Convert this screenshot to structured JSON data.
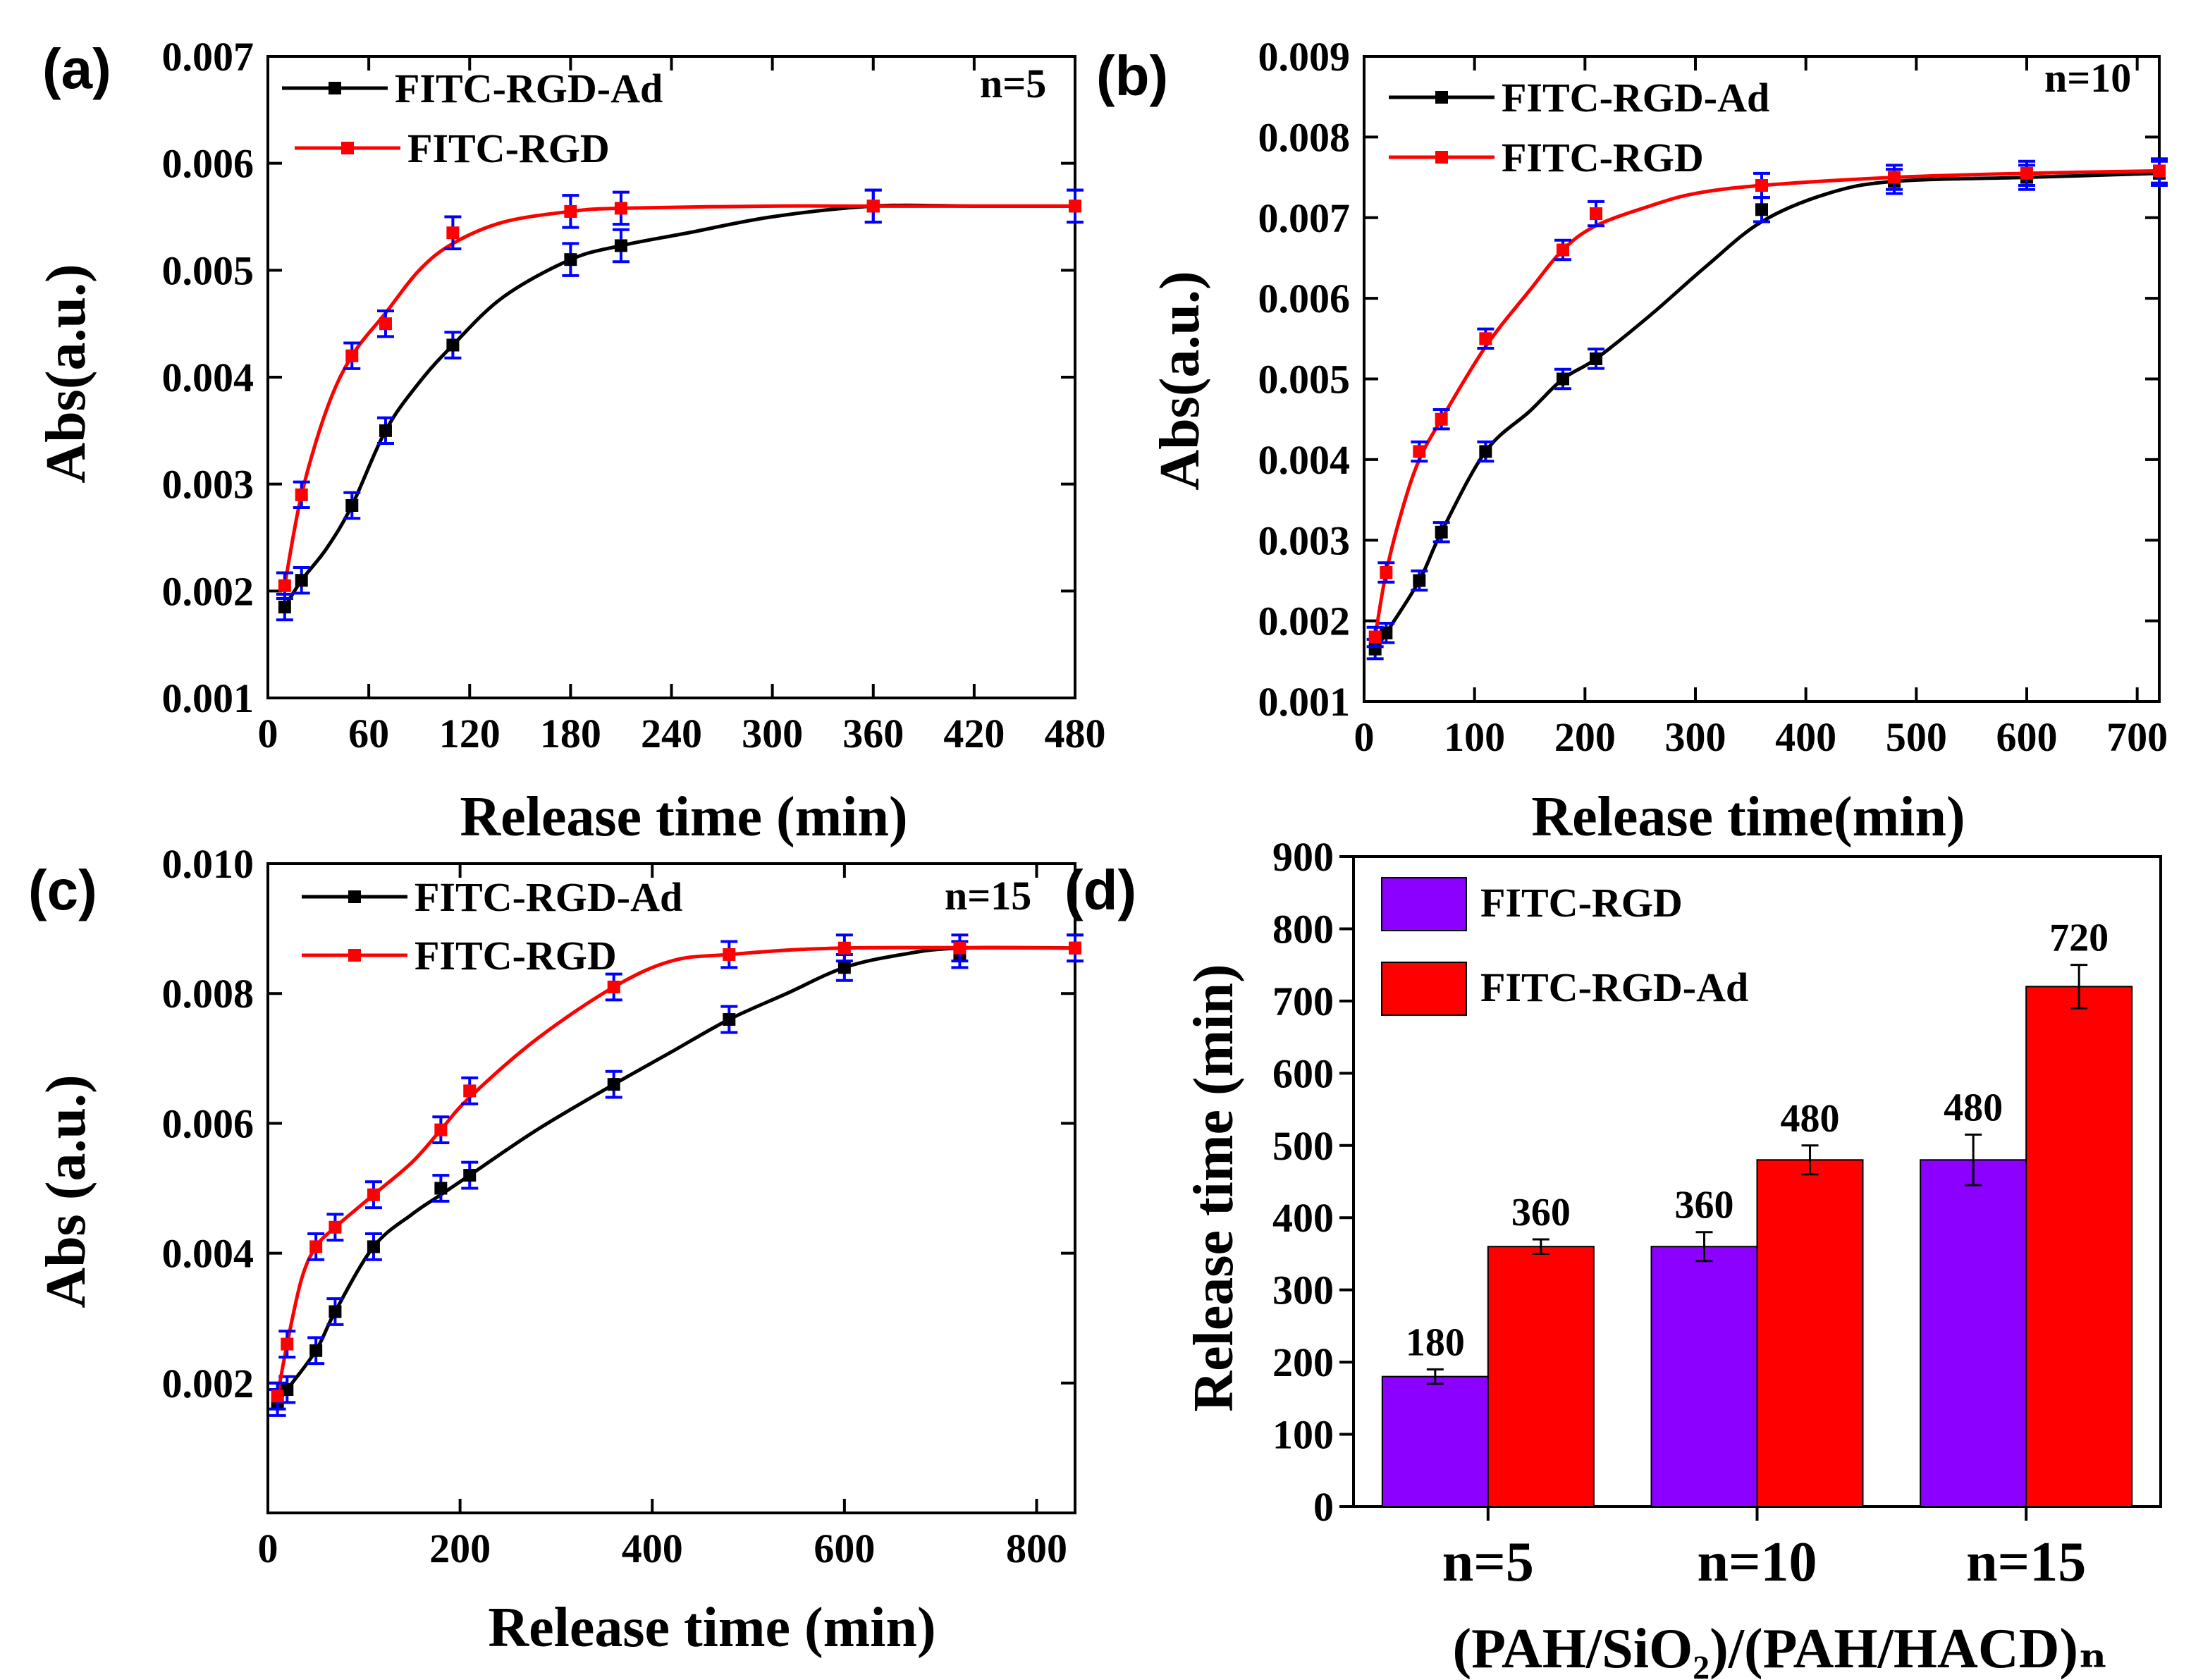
{
  "colors": {
    "red": "#ff0000",
    "black": "#000000",
    "blue": "#0000ff",
    "purple": "#8b00ff",
    "axis": "#000000"
  },
  "chart_data": [
    {
      "type": "line",
      "panel": "(a)",
      "annotation": "n=5",
      "xlabel": "Release time (min)",
      "ylabel": "Abs(a.u.)",
      "xlim": [
        0,
        480
      ],
      "ylim": [
        0.001,
        0.007
      ],
      "xticks": [
        0,
        60,
        120,
        180,
        240,
        300,
        360,
        420,
        480
      ],
      "xtick_labels": [
        "0",
        "60",
        "120",
        "180",
        "240",
        "300",
        "360",
        "420",
        "480"
      ],
      "yticks": [
        0.001,
        0.002,
        0.003,
        0.004,
        0.005,
        0.006,
        0.007
      ],
      "ytick_labels": [
        "0.001",
        "0.002",
        "0.003",
        "0.004",
        "0.005",
        "0.006",
        "0.007"
      ],
      "legend": "top-left",
      "series": [
        {
          "name": "FITC-RGD-Ad",
          "color": "#000000",
          "x": [
            10,
            20,
            50,
            70,
            110,
            180,
            210,
            360,
            480
          ],
          "y": [
            0.00185,
            0.0021,
            0.0028,
            0.0035,
            0.0043,
            0.0051,
            0.00523,
            0.0056,
            0.0056
          ],
          "err": [
            0.00012,
            0.00012,
            0.00012,
            0.00012,
            0.00012,
            0.00015,
            0.00015,
            0.00015,
            0.00015
          ],
          "fit": [
            [
              10,
              0.00185
            ],
            [
              20,
              0.0021
            ],
            [
              35,
              0.0024
            ],
            [
              50,
              0.0028
            ],
            [
              70,
              0.0035
            ],
            [
              90,
              0.00395
            ],
            [
              110,
              0.0043
            ],
            [
              140,
              0.00475
            ],
            [
              180,
              0.0051
            ],
            [
              210,
              0.00523
            ],
            [
              250,
              0.00535
            ],
            [
              300,
              0.0055
            ],
            [
              360,
              0.0056
            ],
            [
              420,
              0.0056
            ],
            [
              480,
              0.0056
            ]
          ]
        },
        {
          "name": "FITC-RGD",
          "color": "#ff0000",
          "x": [
            10,
            20,
            50,
            70,
            110,
            180,
            210,
            360,
            480
          ],
          "y": [
            0.00205,
            0.0029,
            0.0042,
            0.0045,
            0.00535,
            0.00555,
            0.00558,
            0.0056,
            0.0056
          ],
          "err": [
            0.00012,
            0.00012,
            0.00012,
            0.00012,
            0.00015,
            0.00015,
            0.00015,
            0.00015,
            0.00015
          ],
          "fit": [
            [
              10,
              0.00205
            ],
            [
              20,
              0.0029
            ],
            [
              35,
              0.0037
            ],
            [
              50,
              0.0042
            ],
            [
              70,
              0.0046
            ],
            [
              90,
              0.005
            ],
            [
              110,
              0.00525
            ],
            [
              140,
              0.00545
            ],
            [
              180,
              0.00555
            ],
            [
              210,
              0.00558
            ],
            [
              300,
              0.0056
            ],
            [
              360,
              0.0056
            ],
            [
              480,
              0.0056
            ]
          ]
        }
      ]
    },
    {
      "type": "line",
      "panel": "(b)",
      "annotation": "n=10",
      "xlabel": "Release time(min)",
      "ylabel": "Abs(a.u.)",
      "xlim": [
        0,
        720
      ],
      "ylim": [
        0.001,
        0.009
      ],
      "xticks": [
        0,
        100,
        200,
        300,
        400,
        500,
        600,
        700
      ],
      "xtick_labels": [
        "0",
        "100",
        "200",
        "300",
        "400",
        "500",
        "600",
        "700"
      ],
      "yticks": [
        0.001,
        0.002,
        0.003,
        0.004,
        0.005,
        0.006,
        0.007,
        0.008,
        0.009
      ],
      "ytick_labels": [
        "0.001",
        "0.002",
        "0.003",
        "0.004",
        "0.005",
        "0.006",
        "0.007",
        "0.008",
        "0.009"
      ],
      "legend": "top-left",
      "series": [
        {
          "name": "FITC-RGD-Ad",
          "color": "#000000",
          "x": [
            10,
            20,
            50,
            70,
            110,
            180,
            210,
            360,
            480,
            600,
            720
          ],
          "y": [
            0.00165,
            0.00185,
            0.0025,
            0.0031,
            0.0041,
            0.005,
            0.00525,
            0.0071,
            0.00745,
            0.0075,
            0.00755
          ],
          "err": [
            0.00012,
            0.00012,
            0.00012,
            0.00012,
            0.00012,
            0.00012,
            0.00012,
            0.00015,
            0.00015,
            0.00015,
            0.00015
          ],
          "fit": [
            [
              10,
              0.00165
            ],
            [
              20,
              0.00185
            ],
            [
              50,
              0.0025
            ],
            [
              70,
              0.0031
            ],
            [
              110,
              0.0041
            ],
            [
              150,
              0.0046
            ],
            [
              180,
              0.005
            ],
            [
              210,
              0.00525
            ],
            [
              260,
              0.0058
            ],
            [
              310,
              0.0064
            ],
            [
              360,
              0.00695
            ],
            [
              420,
              0.0073
            ],
            [
              480,
              0.00745
            ],
            [
              600,
              0.0075
            ],
            [
              720,
              0.00755
            ]
          ]
        },
        {
          "name": "FITC-RGD",
          "color": "#ff0000",
          "x": [
            10,
            20,
            50,
            70,
            110,
            180,
            210,
            360,
            480,
            600,
            720
          ],
          "y": [
            0.0018,
            0.0026,
            0.0041,
            0.0045,
            0.0055,
            0.0066,
            0.00705,
            0.0074,
            0.0075,
            0.00755,
            0.00758
          ],
          "err": [
            0.00012,
            0.00012,
            0.00012,
            0.00012,
            0.00012,
            0.00012,
            0.00015,
            0.00015,
            0.00015,
            0.00015,
            0.00015
          ],
          "fit": [
            [
              10,
              0.0018
            ],
            [
              20,
              0.0026
            ],
            [
              35,
              0.0034
            ],
            [
              50,
              0.004
            ],
            [
              70,
              0.0045
            ],
            [
              110,
              0.0054
            ],
            [
              150,
              0.0061
            ],
            [
              180,
              0.0066
            ],
            [
              210,
              0.0069
            ],
            [
              260,
              0.00715
            ],
            [
              300,
              0.0073
            ],
            [
              360,
              0.0074
            ],
            [
              480,
              0.0075
            ],
            [
              600,
              0.00755
            ],
            [
              720,
              0.00758
            ]
          ]
        }
      ]
    },
    {
      "type": "line",
      "panel": "(c)",
      "annotation": "n=15",
      "xlabel": "Release time (min)",
      "ylabel": "Abs (a.u.)",
      "xlim": [
        0,
        840
      ],
      "ylim": [
        0.0,
        0.01
      ],
      "xticks": [
        0,
        200,
        400,
        600,
        800
      ],
      "xtick_labels": [
        "0",
        "200",
        "400",
        "600",
        "800"
      ],
      "yticks": [
        0.002,
        0.004,
        0.006,
        0.008,
        0.01
      ],
      "ytick_labels": [
        "0.002",
        "0.004",
        "0.006",
        "0.008",
        "0.010"
      ],
      "legend": "top-left",
      "series": [
        {
          "name": "FITC-RGD-Ad",
          "color": "#000000",
          "x": [
            10,
            20,
            50,
            70,
            110,
            180,
            210,
            360,
            480,
            600,
            720,
            840
          ],
          "y": [
            0.0017,
            0.0019,
            0.0025,
            0.0031,
            0.0041,
            0.005,
            0.0052,
            0.0066,
            0.0076,
            0.0084,
            0.0086,
            0.0087
          ],
          "err": [
            0.0002,
            0.0002,
            0.0002,
            0.0002,
            0.0002,
            0.0002,
            0.0002,
            0.0002,
            0.0002,
            0.0002,
            0.0002,
            0.0002
          ],
          "fit": [
            [
              10,
              0.0017
            ],
            [
              20,
              0.0019
            ],
            [
              50,
              0.0025
            ],
            [
              70,
              0.0031
            ],
            [
              110,
              0.0041
            ],
            [
              150,
              0.0046
            ],
            [
              180,
              0.0049
            ],
            [
              210,
              0.0052
            ],
            [
              280,
              0.0059
            ],
            [
              360,
              0.0066
            ],
            [
              420,
              0.0071
            ],
            [
              480,
              0.0076
            ],
            [
              540,
              0.008
            ],
            [
              600,
              0.0084
            ],
            [
              660,
              0.0086
            ],
            [
              720,
              0.0087
            ],
            [
              840,
              0.0087
            ]
          ]
        },
        {
          "name": "FITC-RGD",
          "color": "#ff0000",
          "x": [
            10,
            20,
            50,
            70,
            110,
            180,
            210,
            360,
            480,
            600,
            720,
            840
          ],
          "y": [
            0.0018,
            0.0026,
            0.0041,
            0.0044,
            0.0049,
            0.0059,
            0.0065,
            0.0081,
            0.0086,
            0.0087,
            0.0087,
            0.0087
          ],
          "err": [
            0.0002,
            0.0002,
            0.0002,
            0.0002,
            0.0002,
            0.0002,
            0.0002,
            0.0002,
            0.0002,
            0.0002,
            0.0002,
            0.0002
          ],
          "fit": [
            [
              10,
              0.0018
            ],
            [
              20,
              0.0026
            ],
            [
              35,
              0.0036
            ],
            [
              50,
              0.0041
            ],
            [
              70,
              0.0044
            ],
            [
              110,
              0.0049
            ],
            [
              150,
              0.0054
            ],
            [
              180,
              0.0059
            ],
            [
              210,
              0.0064
            ],
            [
              280,
              0.0073
            ],
            [
              360,
              0.0081
            ],
            [
              420,
              0.0085
            ],
            [
              480,
              0.0086
            ],
            [
              600,
              0.0087
            ],
            [
              840,
              0.0087
            ]
          ]
        }
      ]
    },
    {
      "type": "bar",
      "panel": "(d)",
      "categories": [
        "n=5",
        "n=10",
        "n=15"
      ],
      "xlabel": "(PAH/SiO₂)/(PAH/HACD)ₙ",
      "ylabel": "Release time (min)",
      "ylim": [
        0,
        900
      ],
      "yticks": [
        0,
        100,
        200,
        300,
        400,
        500,
        600,
        700,
        800,
        900
      ],
      "ytick_labels": [
        "0",
        "100",
        "200",
        "300",
        "400",
        "500",
        "600",
        "700",
        "800",
        "900"
      ],
      "legend": "top-left",
      "series": [
        {
          "name": "FITC-RGD",
          "color": "#8b00ff",
          "values": [
            180,
            360,
            480
          ],
          "err": [
            10,
            20,
            35
          ],
          "labels": [
            "180",
            "360",
            "480"
          ]
        },
        {
          "name": "FITC-RGD-Ad",
          "color": "#ff0000",
          "values": [
            360,
            480,
            720
          ],
          "err": [
            10,
            20,
            30
          ],
          "labels": [
            "360",
            "480",
            "720"
          ]
        }
      ]
    }
  ]
}
